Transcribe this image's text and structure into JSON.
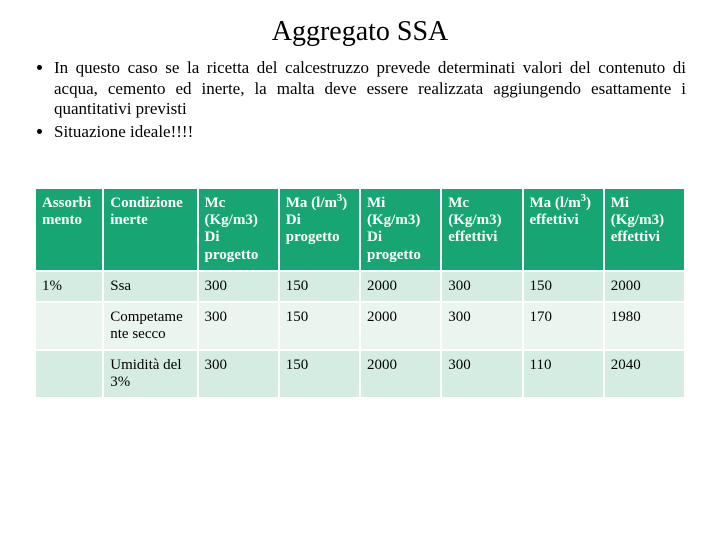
{
  "title": "Aggregato SSA",
  "bullets": [
    "In questo caso se la ricetta del calcestruzzo prevede determinati valori del contenuto di acqua, cemento ed inerte, la malta deve essere realizzata aggiungendo esattamente i quantitativi previsti",
    "Situazione ideale!!!!"
  ],
  "table": {
    "header_bg": "#17a673",
    "header_fg": "#ffffff",
    "row_odd_bg": "#d5ece2",
    "row_even_bg": "#ebf5f0",
    "border_color": "#ffffff",
    "font_size_pt": 11,
    "columns": [
      {
        "key": "c0",
        "label_html": "Assorbi mento"
      },
      {
        "key": "c1",
        "label_html": "Condizione inerte"
      },
      {
        "key": "c2",
        "label_html": "Mc (Kg/m3) Di progetto"
      },
      {
        "key": "c3",
        "label_html": "Ma (l/m<sup>3</sup>) Di progetto"
      },
      {
        "key": "c4",
        "label_html": "Mi (Kg/m3) Di progetto"
      },
      {
        "key": "c5",
        "label_html": "Mc (Kg/m3) effettivi"
      },
      {
        "key": "c6",
        "label_html": "Ma (l/m<sup>3</sup>) effettivi"
      },
      {
        "key": "c7",
        "label_html": "Mi (Kg/m3) effettivi"
      }
    ],
    "rows": [
      [
        "1%",
        "Ssa",
        "300",
        "150",
        "2000",
        "300",
        "150",
        "2000"
      ],
      [
        "",
        "Competame nte secco",
        "300",
        "150",
        "2000",
        "300",
        "170",
        "1980"
      ],
      [
        "",
        "Umidità del 3%",
        "300",
        "150",
        "2000",
        "300",
        "110",
        "2040"
      ]
    ]
  }
}
